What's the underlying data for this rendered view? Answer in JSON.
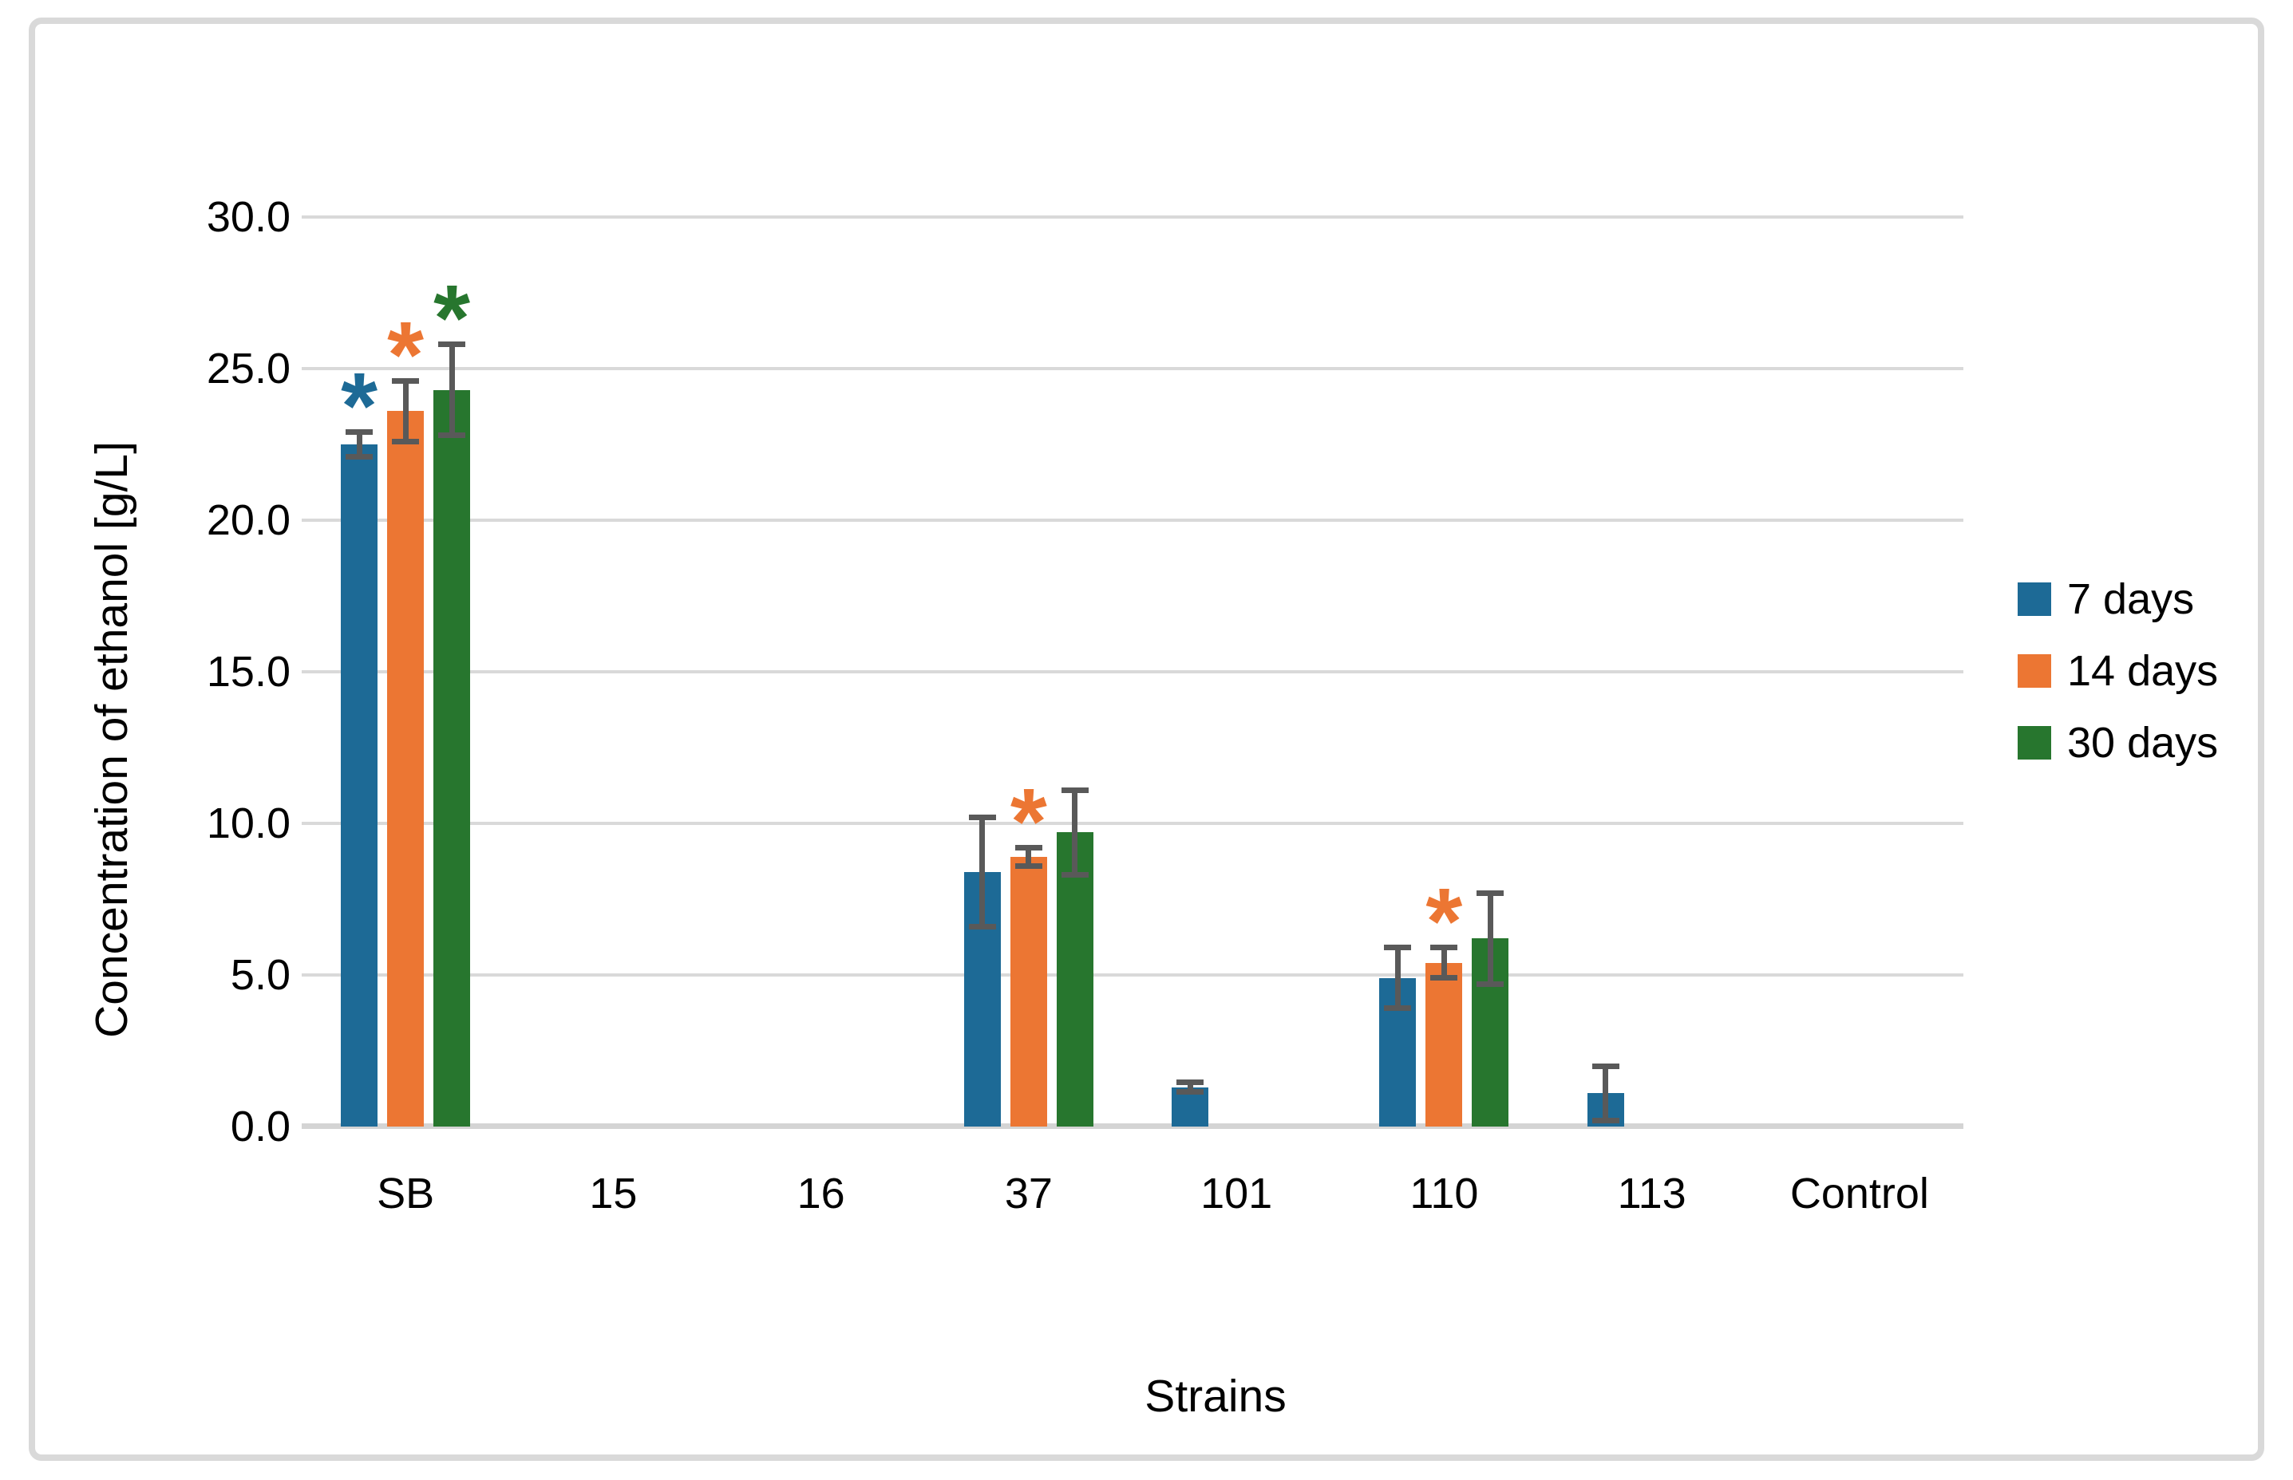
{
  "chart_data": {
    "type": "bar",
    "title": "",
    "xlabel": "Strains",
    "ylabel": "Concentration of ethanol [g/L]",
    "categories": [
      "SB",
      "15",
      "16",
      "37",
      "101",
      "110",
      "113",
      "Control"
    ],
    "yticks": {
      "values": [
        0,
        5,
        10,
        15,
        20,
        25,
        30
      ],
      "labels": [
        "0.0",
        "5.0",
        "10.0",
        "15.0",
        "20.0",
        "25.0",
        "30.0"
      ]
    },
    "ylim": [
      0,
      34
    ],
    "grid": true,
    "legend_position": "right",
    "series": [
      {
        "name": "7 days",
        "color": "#1d6a96",
        "values": [
          22.5,
          null,
          null,
          8.4,
          1.3,
          4.9,
          1.1,
          null
        ],
        "errors": [
          0.4,
          null,
          null,
          1.8,
          0.15,
          1.0,
          0.9,
          null
        ],
        "asterisks": [
          true,
          false,
          false,
          false,
          false,
          false,
          false,
          false
        ]
      },
      {
        "name": "14 days",
        "color": "#ec7633",
        "values": [
          23.6,
          null,
          null,
          8.9,
          null,
          5.4,
          null,
          null
        ],
        "errors": [
          1.0,
          null,
          null,
          0.3,
          null,
          0.5,
          null,
          null
        ],
        "asterisks": [
          true,
          false,
          false,
          true,
          false,
          true,
          false,
          false
        ]
      },
      {
        "name": "30 days",
        "color": "#27762e",
        "values": [
          24.3,
          null,
          null,
          9.7,
          null,
          6.2,
          null,
          null
        ],
        "errors": [
          1.5,
          null,
          null,
          1.4,
          null,
          1.5,
          null,
          null
        ],
        "asterisks": [
          true,
          false,
          false,
          false,
          false,
          false,
          false,
          false
        ]
      }
    ],
    "error_bar_color": "#595959",
    "gridline_color": "#d9d9d9",
    "axis_line_color": "#d4d4d4",
    "frame_border_color": "#d9d9d9",
    "background": "#ffffff",
    "text_color": "#000000"
  }
}
